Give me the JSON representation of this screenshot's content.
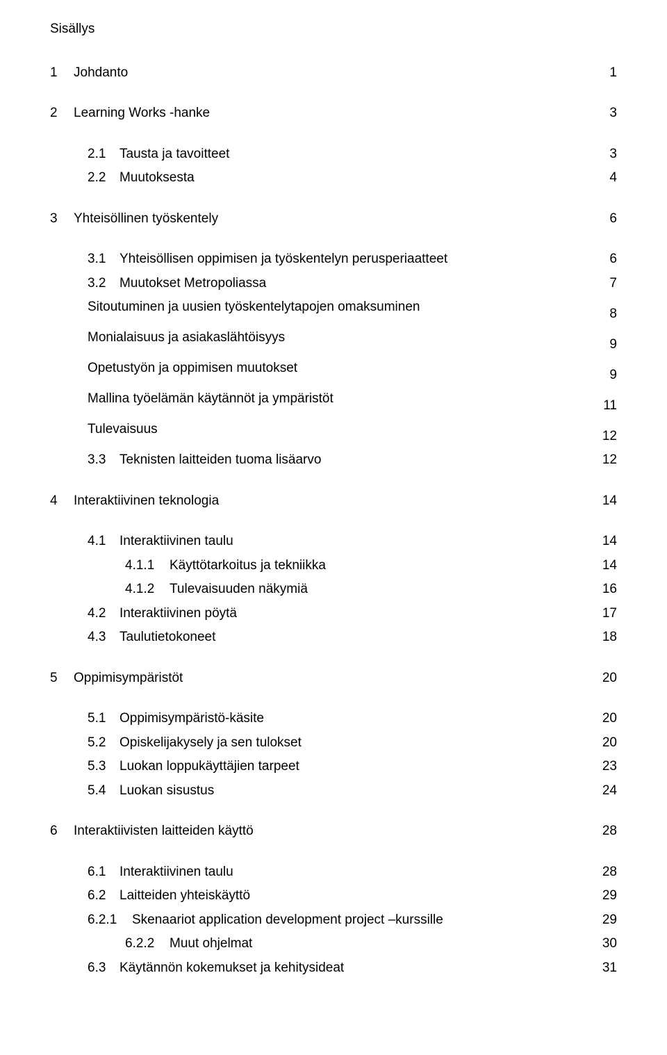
{
  "title": "Sisällys",
  "entries": [
    {
      "cls": "lvl0 gap-lg",
      "num": "1",
      "label": "Johdanto",
      "page": "1"
    },
    {
      "cls": "lvl0 gap-lg",
      "num": "2",
      "label": "Learning Works -hanke",
      "page": "3"
    },
    {
      "cls": "lvl1 block",
      "num": "2.1",
      "label": "Tausta ja tavoitteet",
      "page": "3"
    },
    {
      "cls": "lvl1",
      "num": "2.2",
      "label": "Muutoksesta",
      "page": "4"
    },
    {
      "cls": "lvl0 gap-lg",
      "num": "3",
      "label": "Yhteisöllinen työskentely",
      "page": "6"
    },
    {
      "cls": "lvl1 block",
      "num": "3.1",
      "label": "Yhteisöllisen oppimisen ja työskentelyn perusperiaatteet",
      "page": "6"
    },
    {
      "cls": "lvl1 block",
      "num": "3.2",
      "label": "Muutokset Metropoliassa",
      "page": "7"
    },
    {
      "cls": "nonum block",
      "num": "",
      "label": "Sitoutuminen ja uusien työskentelytapojen omaksuminen",
      "page": "8"
    },
    {
      "cls": "nonum block",
      "num": "",
      "label": "Monialaisuus ja asiakaslähtöisyys",
      "page": "9"
    },
    {
      "cls": "nonum block",
      "num": "",
      "label": "Opetustyön ja oppimisen muutokset",
      "page": "9"
    },
    {
      "cls": "nonum block",
      "num": "",
      "label": "Mallina työelämän käytännöt ja ympäristöt",
      "page": "11"
    },
    {
      "cls": "nonum block",
      "num": "",
      "label": "Tulevaisuus",
      "page": "12"
    },
    {
      "cls": "lvl1",
      "num": "3.3",
      "label": "Teknisten laitteiden tuoma lisäarvo",
      "page": "12"
    },
    {
      "cls": "lvl0 gap-lg",
      "num": "4",
      "label": "Interaktiivinen teknologia",
      "page": "14"
    },
    {
      "cls": "lvl1 block",
      "num": "4.1",
      "label": "Interaktiivinen taulu",
      "page": "14"
    },
    {
      "cls": "lvl2 block",
      "num": "4.1.1",
      "label": "Käyttötarkoitus ja tekniikka",
      "page": "14"
    },
    {
      "cls": "lvl2 block",
      "num": "4.1.2",
      "label": "Tulevaisuuden näkymiä",
      "page": "16"
    },
    {
      "cls": "lvl1 block",
      "num": "4.2",
      "label": "Interaktiivinen pöytä",
      "page": "17"
    },
    {
      "cls": "lvl1",
      "num": "4.3",
      "label": "Taulutietokoneet",
      "page": "18"
    },
    {
      "cls": "lvl0 gap-lg",
      "num": "5",
      "label": "Oppimisympäristöt",
      "page": "20"
    },
    {
      "cls": "lvl1 block",
      "num": "5.1",
      "label": "Oppimisympäristö-käsite",
      "page": "20"
    },
    {
      "cls": "lvl1 block",
      "num": "5.2",
      "label": "Opiskelijakysely ja sen tulokset",
      "page": "20"
    },
    {
      "cls": "lvl1 block",
      "num": "5.3",
      "label": "Luokan loppukäyttäjien tarpeet",
      "page": "23"
    },
    {
      "cls": "lvl1",
      "num": "5.4",
      "label": "Luokan sisustus",
      "page": "24"
    },
    {
      "cls": "lvl0 gap-lg",
      "num": "6",
      "label": "Interaktiivisten laitteiden käyttö",
      "page": "28"
    },
    {
      "cls": "lvl1 block",
      "num": "6.1",
      "label": "Interaktiivinen taulu",
      "page": "28"
    },
    {
      "cls": "lvl1 block",
      "num": "6.2",
      "label": "Laitteiden yhteiskäyttö",
      "page": "29"
    },
    {
      "cls": "lvl2-wide block",
      "num": "6.2.1",
      "label": "Skenaariot application development project –kurssille",
      "page": "29"
    },
    {
      "cls": "lvl2 block",
      "num": "6.2.2",
      "label": "Muut ohjelmat",
      "page": "30"
    },
    {
      "cls": "lvl1",
      "num": "6.3",
      "label": "Käytännön kokemukset ja kehitysideat",
      "page": "31"
    }
  ]
}
